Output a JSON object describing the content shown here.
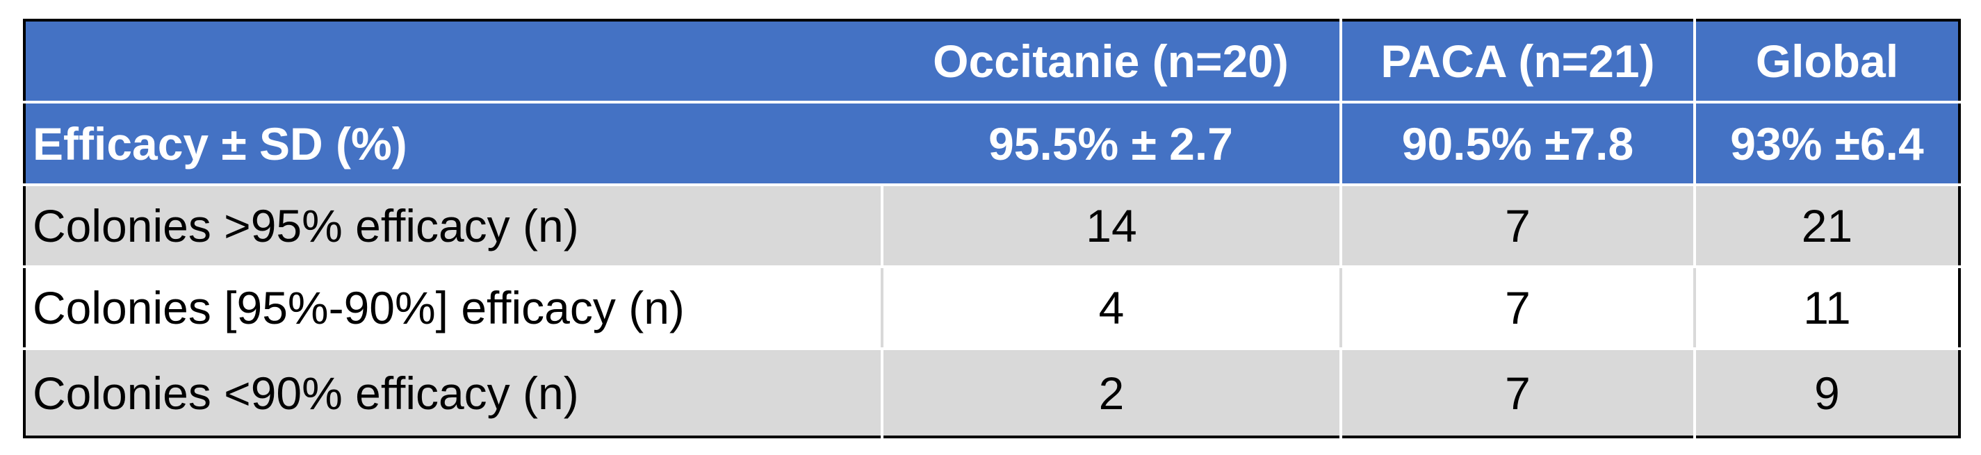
{
  "table": {
    "columns": [
      "Occitanie (n=20)",
      "PACA (n=21)",
      "Global"
    ],
    "rows": [
      [
        "Efficacy ± SD (%)",
        "95.5% ± 2.7",
        "90.5% ±7.8",
        "93% ±6.4"
      ],
      [
        "Colonies >95% efficacy (n)",
        14,
        7,
        21
      ],
      [
        "Colonies [95%-90%] efficacy (n)",
        4,
        7,
        11
      ],
      [
        "Colonies <90% efficacy (n)",
        2,
        7,
        9
      ]
    ]
  }
}
